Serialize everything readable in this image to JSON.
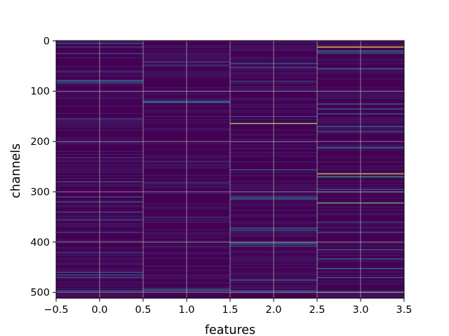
{
  "chart_data": {
    "type": "heatmap",
    "title": "",
    "xlabel": "features",
    "ylabel": "channels",
    "xlim": [
      -0.5,
      3.5
    ],
    "ylim": [
      511.5,
      -0.5
    ],
    "x_ticks": [
      -0.5,
      0.0,
      0.5,
      1.0,
      1.5,
      2.0,
      2.5,
      3.0,
      3.5
    ],
    "x_tick_labels": [
      "−0.5",
      "0.0",
      "0.5",
      "1.0",
      "1.5",
      "2.0",
      "2.5",
      "3.0",
      "3.5"
    ],
    "y_ticks": [
      0,
      100,
      200,
      300,
      400,
      500
    ],
    "y_tick_labels": [
      "0",
      "100",
      "200",
      "300",
      "400",
      "500"
    ],
    "grid": true,
    "colormap": "viridis",
    "colormap_stops": [
      "#440154",
      "#3b528b",
      "#21918c",
      "#5ec962",
      "#fde725"
    ],
    "background_color": "#440154",
    "n_channels": 512,
    "features": [
      0,
      1,
      2,
      3
    ],
    "highlights": [
      {
        "feature": 0,
        "channels": [
          5,
          12,
          25,
          60,
          78,
          80,
          83,
          155,
          232,
          280,
          310,
          320,
          340,
          355,
          380,
          420,
          460,
          465,
          470,
          497
        ],
        "values": [
          0.25,
          0.2,
          0.22,
          0.2,
          0.3,
          0.32,
          0.28,
          0.2,
          0.18,
          0.25,
          0.28,
          0.3,
          0.3,
          0.25,
          0.2,
          0.22,
          0.28,
          0.3,
          0.25,
          0.35
        ]
      },
      {
        "feature": 1,
        "channels": [
          42,
          48,
          100,
          120,
          122,
          240,
          282,
          350,
          400,
          493,
          496
        ],
        "values": [
          0.25,
          0.2,
          0.15,
          0.4,
          0.32,
          0.18,
          0.2,
          0.15,
          0.18,
          0.3,
          0.38
        ]
      },
      {
        "feature": 2,
        "channels": [
          45,
          52,
          80,
          150,
          164,
          256,
          310,
          314,
          372,
          376,
          400,
          403,
          408,
          475,
          497
        ],
        "values": [
          0.35,
          0.3,
          0.2,
          0.22,
          0.85,
          0.35,
          0.4,
          0.45,
          0.45,
          0.35,
          0.55,
          0.4,
          0.3,
          0.45,
          0.35
        ]
      },
      {
        "feature": 3,
        "channels": [
          12,
          20,
          24,
          55,
          125,
          135,
          145,
          170,
          180,
          212,
          264,
          270,
          295,
          300,
          322,
          360,
          380,
          415,
          433,
          452,
          470,
          499
        ],
        "values": [
          0.98,
          0.55,
          0.45,
          0.4,
          0.3,
          0.35,
          0.3,
          0.3,
          0.35,
          0.45,
          0.95,
          0.6,
          0.25,
          0.3,
          0.75,
          0.25,
          0.3,
          0.4,
          0.3,
          0.35,
          0.3,
          0.65
        ]
      }
    ]
  }
}
